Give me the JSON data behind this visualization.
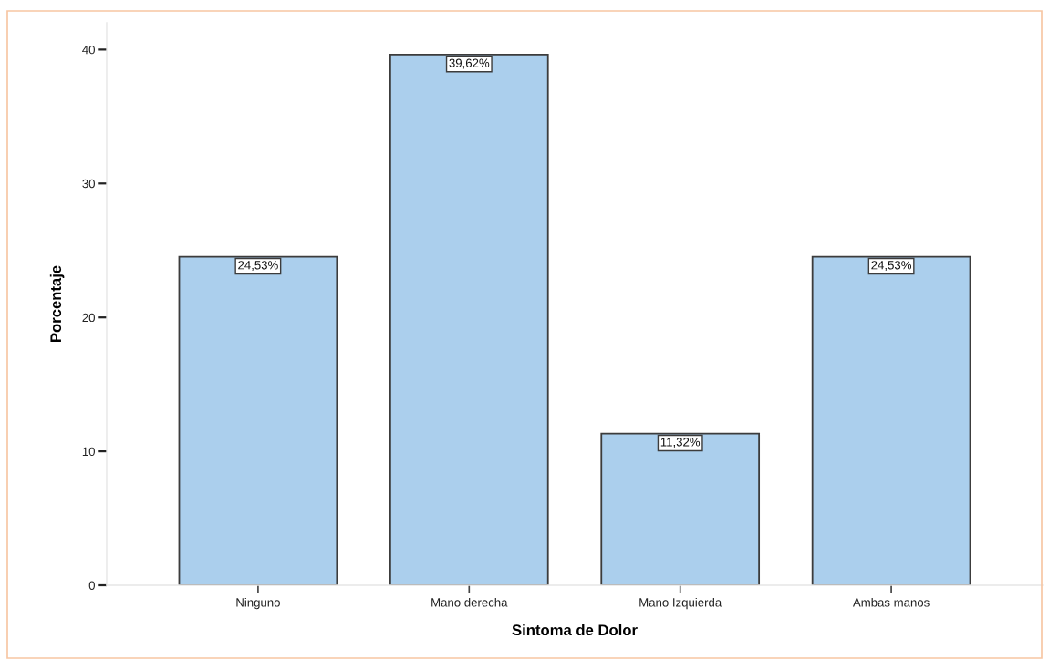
{
  "chart_data": {
    "type": "bar",
    "xlabel": "Sintoma de Dolor",
    "ylabel": "Porcentaje",
    "categories": [
      "Ninguno",
      "Mano derecha",
      "Mano Izquierda",
      "Ambas manos"
    ],
    "values": [
      24.53,
      39.62,
      11.32,
      24.53
    ],
    "value_labels": [
      "24,53%",
      "39,62%",
      "11,32%",
      "24,53%"
    ],
    "color": "#abcfed",
    "ylim": [
      0,
      42
    ],
    "yticks": [
      0,
      10,
      20,
      30,
      40
    ]
  }
}
